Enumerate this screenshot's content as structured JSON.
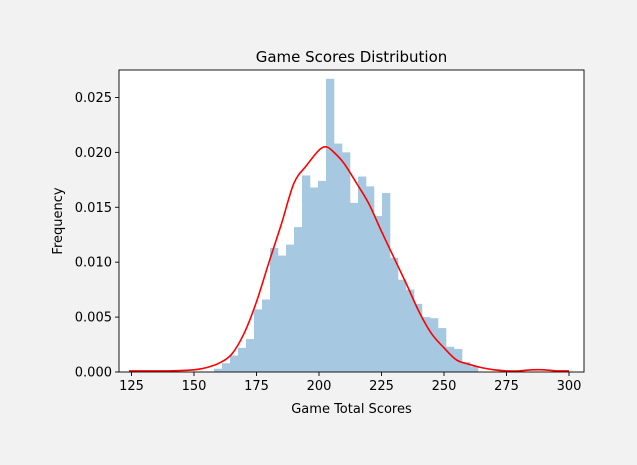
{
  "chart_data": {
    "type": "bar",
    "title": "Game Scores Distribution",
    "xlabel": "Game Total Scores",
    "ylabel": "Frequency",
    "xlim": [
      120,
      306
    ],
    "ylim": [
      0,
      0.0275
    ],
    "xticks": [
      125,
      150,
      175,
      200,
      225,
      250,
      275,
      300
    ],
    "xtick_labels": [
      "125",
      "150",
      "175",
      "200",
      "225",
      "250",
      "275",
      "300"
    ],
    "yticks": [
      0,
      0.005,
      0.01,
      0.015,
      0.02,
      0.025
    ],
    "ytick_labels": [
      "0.000",
      "0.005",
      "0.010",
      "0.015",
      "0.020",
      "0.025"
    ],
    "grid": false,
    "histogram": {
      "bin_width": 3.2,
      "bin_edges_start": 158,
      "values": [
        0.0003,
        0.0008,
        0.0015,
        0.0022,
        0.003,
        0.0057,
        0.0066,
        0.0113,
        0.0106,
        0.0116,
        0.0132,
        0.0179,
        0.0168,
        0.0174,
        0.0267,
        0.0208,
        0.02,
        0.0154,
        0.0178,
        0.0169,
        0.0142,
        0.0163,
        0.0104,
        0.0084,
        0.0075,
        0.0062,
        0.005,
        0.0049,
        0.004,
        0.0023,
        0.0021,
        0.0009,
        0.0005
      ],
      "color": "#a6c8e0"
    },
    "kde": {
      "x": [
        124,
        130,
        140,
        150,
        155,
        160,
        165,
        170,
        175,
        180,
        185,
        190,
        195,
        200,
        203,
        206,
        210,
        215,
        220,
        225,
        230,
        235,
        240,
        245,
        250,
        255,
        260,
        265,
        270,
        275,
        280,
        285,
        290,
        295,
        300
      ],
      "y": [
        0.0001,
        0.0001,
        0.0001,
        0.0002,
        0.0004,
        0.0008,
        0.0016,
        0.0035,
        0.0064,
        0.01,
        0.0135,
        0.0172,
        0.0188,
        0.0202,
        0.0205,
        0.02,
        0.019,
        0.0172,
        0.0153,
        0.0128,
        0.0104,
        0.008,
        0.0055,
        0.0035,
        0.0022,
        0.0011,
        0.0007,
        0.0004,
        0.0002,
        0.0001,
        0.0001,
        0.0002,
        0.0002,
        0.0001,
        0.0001
      ],
      "color": "#ff0000"
    }
  }
}
